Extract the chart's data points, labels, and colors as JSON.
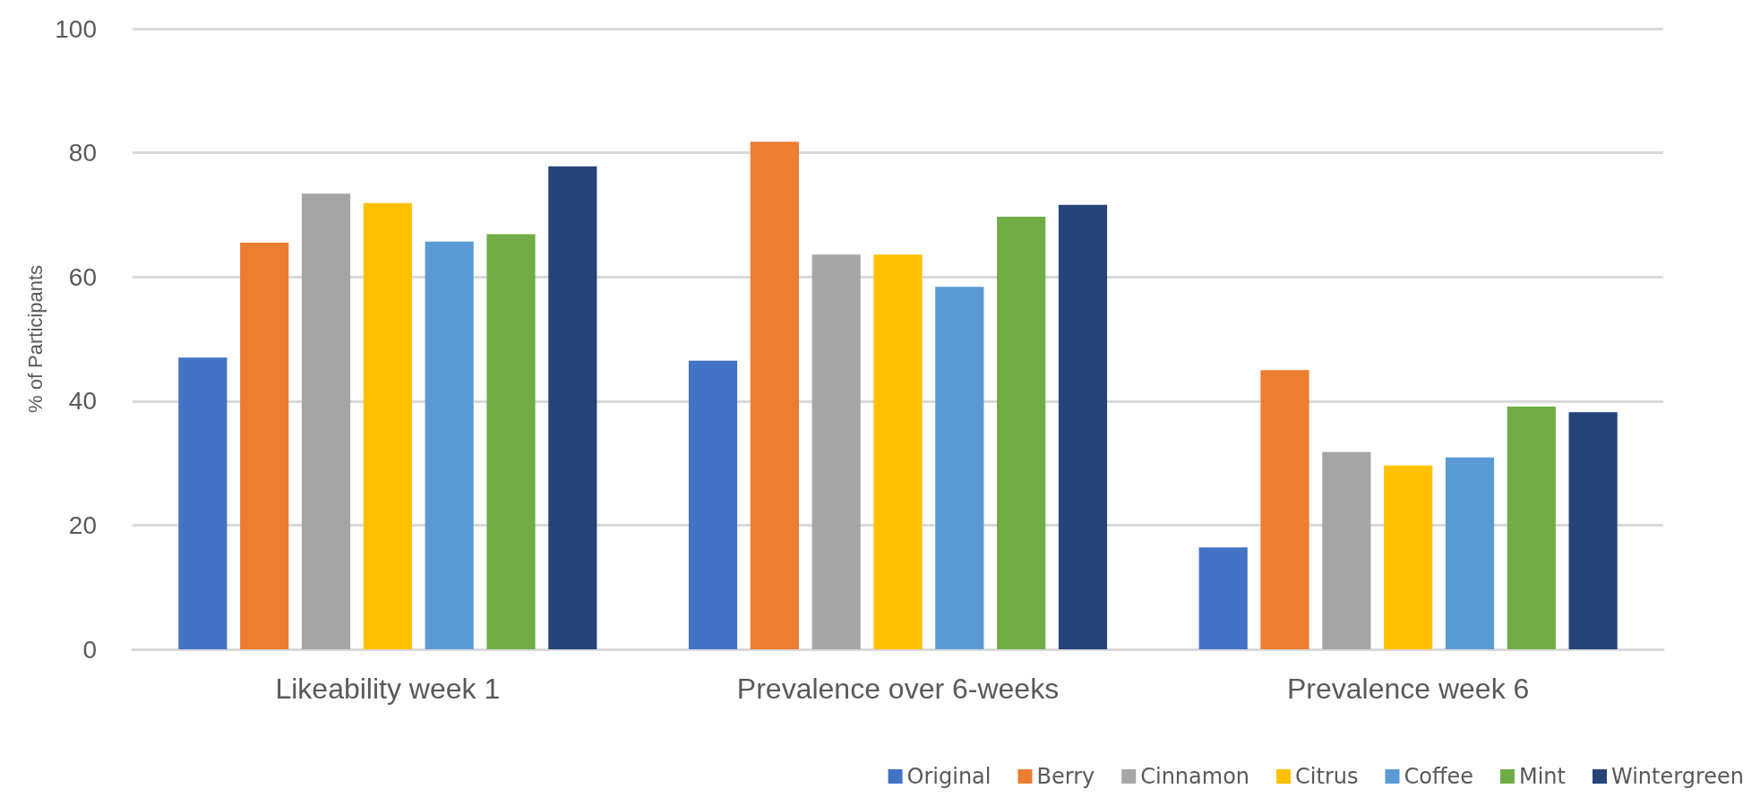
{
  "chart_data": {
    "type": "bar",
    "ylabel": "% of Participants",
    "categories": [
      "Likeability week 1",
      "Prevalence over 6-weeks",
      "Prevalence week 6"
    ],
    "series": [
      {
        "name": "Original",
        "color": "#4472c4",
        "values": [
          47,
          46.5,
          16.4
        ]
      },
      {
        "name": "Berry",
        "color": "#ed7d31",
        "values": [
          65.5,
          81.8,
          45
        ]
      },
      {
        "name": "Cinnamon",
        "color": "#a5a5a5",
        "values": [
          73.4,
          63.6,
          31.8
        ]
      },
      {
        "name": "Citrus",
        "color": "#ffc000",
        "values": [
          71.9,
          63.6,
          29.6
        ]
      },
      {
        "name": "Coffee",
        "color": "#5b9bd5",
        "values": [
          65.7,
          58.4,
          30.9
        ]
      },
      {
        "name": "Mint",
        "color": "#70ad47",
        "values": [
          66.9,
          69.7,
          39.1
        ]
      },
      {
        "name": "Wintergreen",
        "color": "#264478",
        "values": [
          77.8,
          71.6,
          38.2
        ]
      }
    ],
    "ylim": [
      0,
      100
    ],
    "yticks": [
      0,
      20,
      40,
      60,
      80,
      100
    ],
    "grid": "y",
    "legend": "bottom right"
  }
}
